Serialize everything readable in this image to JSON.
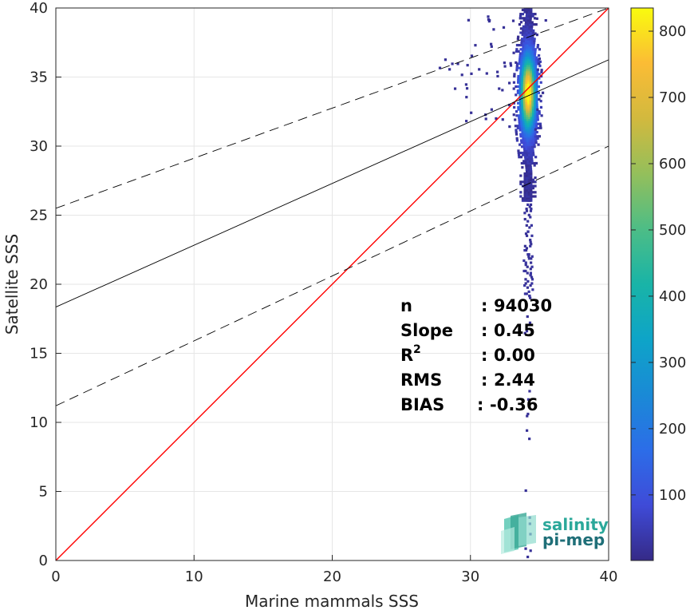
{
  "chart_data": {
    "type": "scatter",
    "subtype": "2d-density-histogram",
    "xlabel": "Marine mammals SSS",
    "ylabel": "Satellite SSS",
    "xlim": [
      0,
      40
    ],
    "ylim": [
      0,
      40
    ],
    "xticks": [
      "0",
      "10",
      "20",
      "30",
      "40"
    ],
    "yticks": [
      "0",
      "5",
      "10",
      "15",
      "20",
      "25",
      "30",
      "35",
      "40"
    ],
    "grid": true,
    "colorbar": {
      "colormap": "parula",
      "range": [
        1,
        835
      ],
      "ticks": [
        "100",
        "200",
        "300",
        "400",
        "500",
        "600",
        "700",
        "800"
      ],
      "tick_values": [
        100,
        200,
        300,
        400,
        500,
        600,
        700,
        800
      ]
    },
    "lines": [
      {
        "name": "1:1",
        "color": "#ff0000",
        "style": "solid",
        "x": [
          0,
          40
        ],
        "y": [
          0,
          40
        ]
      },
      {
        "name": "fit",
        "color": "#000000",
        "style": "solid",
        "x": [
          0,
          40
        ],
        "y": [
          18.35,
          36.25
        ]
      },
      {
        "name": "fit+2sd",
        "color": "#000000",
        "style": "dashed",
        "x": [
          0,
          40
        ],
        "y": [
          25.5,
          40.0
        ]
      },
      {
        "name": "fit-2sd",
        "color": "#000000",
        "style": "dashed",
        "x": [
          0,
          40
        ],
        "y": [
          11.2,
          30.0
        ]
      }
    ],
    "stats": [
      {
        "label": "n",
        "sep": ": ",
        "value": "94030"
      },
      {
        "label": "Slope",
        "sep": ": ",
        "value": "0.45"
      },
      {
        "label": "R",
        "sup": "2",
        "sep": ": ",
        "value": "0.00"
      },
      {
        "label": "RMS",
        "sep": ": ",
        "value": "2.44"
      },
      {
        "label": "BIAS",
        "sep": ": ",
        "value": "-0.36"
      }
    ],
    "density": {
      "x_center": 34.1,
      "y_center": 33.8,
      "peak_count": 835
    }
  },
  "logo": {
    "line1": "salinity",
    "line2": "pi-mep"
  }
}
